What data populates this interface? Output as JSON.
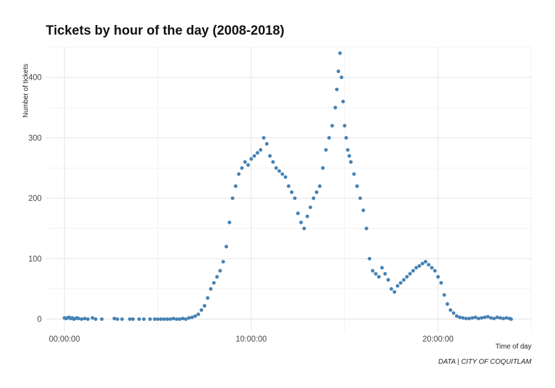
{
  "chart_data": {
    "type": "scatter",
    "title": "Tickets by hour of the day (2008-2018)",
    "xlabel": "Time of day",
    "ylabel": "Number of tickets",
    "caption": "DATA | CITY OF COQUITLAM",
    "x_unit": "minutes since midnight",
    "xlim": [
      -60,
      1500
    ],
    "ylim": [
      -20,
      450
    ],
    "x_ticks": [
      {
        "value": 0,
        "label": "00:00:00"
      },
      {
        "value": 600,
        "label": "10:00:00"
      },
      {
        "value": 1200,
        "label": "20:00:00"
      }
    ],
    "y_ticks": [
      {
        "value": 0,
        "label": "0"
      },
      {
        "value": 100,
        "label": "100"
      },
      {
        "value": 200,
        "label": "200"
      },
      {
        "value": 300,
        "label": "300"
      },
      {
        "value": 400,
        "label": "400"
      }
    ],
    "grid": true,
    "point_color": "#4682b4",
    "series": [
      {
        "x": [
          0,
          5,
          10,
          15,
          20,
          25,
          30,
          35,
          40,
          45,
          55,
          65,
          75,
          90,
          100,
          120,
          160,
          170,
          185,
          210,
          220,
          240,
          255,
          275,
          290,
          300,
          310,
          320,
          330,
          340,
          350,
          360,
          370,
          380,
          390,
          400,
          410,
          420,
          430,
          440,
          450,
          460,
          470,
          480,
          490,
          500,
          510,
          520,
          530,
          540,
          550,
          560,
          570,
          580,
          590,
          600,
          610,
          620,
          630,
          640,
          650,
          660,
          670,
          680,
          690,
          700,
          710,
          720,
          730,
          740,
          750,
          760,
          770,
          780,
          790,
          800,
          810,
          820,
          830,
          840,
          850,
          860,
          870,
          875,
          880,
          885,
          890,
          895,
          900,
          905,
          910,
          915,
          920,
          930,
          940,
          950,
          960,
          970,
          980,
          990,
          1000,
          1010,
          1020,
          1030,
          1040,
          1050,
          1060,
          1070,
          1080,
          1090,
          1100,
          1110,
          1120,
          1130,
          1140,
          1150,
          1160,
          1170,
          1180,
          1190,
          1200,
          1210,
          1220,
          1230,
          1240,
          1250,
          1260,
          1270,
          1280,
          1290,
          1300,
          1310,
          1320,
          1330,
          1340,
          1350,
          1360,
          1370,
          1380,
          1390,
          1400,
          1410,
          1420,
          1430,
          1435
        ],
        "y": [
          2,
          1,
          2,
          3,
          1,
          2,
          0,
          1,
          2,
          1,
          0,
          1,
          0,
          2,
          0,
          0,
          1,
          0,
          0,
          0,
          0,
          0,
          0,
          0,
          0,
          0,
          0,
          0,
          0,
          0,
          1,
          0,
          0,
          1,
          0,
          2,
          3,
          5,
          8,
          15,
          22,
          35,
          50,
          60,
          70,
          80,
          95,
          120,
          160,
          200,
          220,
          240,
          250,
          260,
          255,
          265,
          270,
          275,
          280,
          300,
          290,
          270,
          260,
          250,
          245,
          240,
          235,
          220,
          210,
          200,
          175,
          160,
          150,
          170,
          185,
          200,
          210,
          220,
          250,
          280,
          300,
          320,
          350,
          380,
          410,
          440,
          400,
          360,
          320,
          300,
          280,
          270,
          260,
          240,
          220,
          200,
          180,
          150,
          100,
          80,
          75,
          70,
          85,
          75,
          65,
          50,
          45,
          55,
          60,
          65,
          70,
          75,
          80,
          85,
          88,
          92,
          95,
          90,
          85,
          80,
          70,
          60,
          40,
          25,
          15,
          10,
          5,
          3,
          2,
          1,
          1,
          2,
          3,
          1,
          2,
          3,
          4,
          2,
          1,
          3,
          2,
          1,
          2,
          1,
          0
        ]
      }
    ]
  }
}
